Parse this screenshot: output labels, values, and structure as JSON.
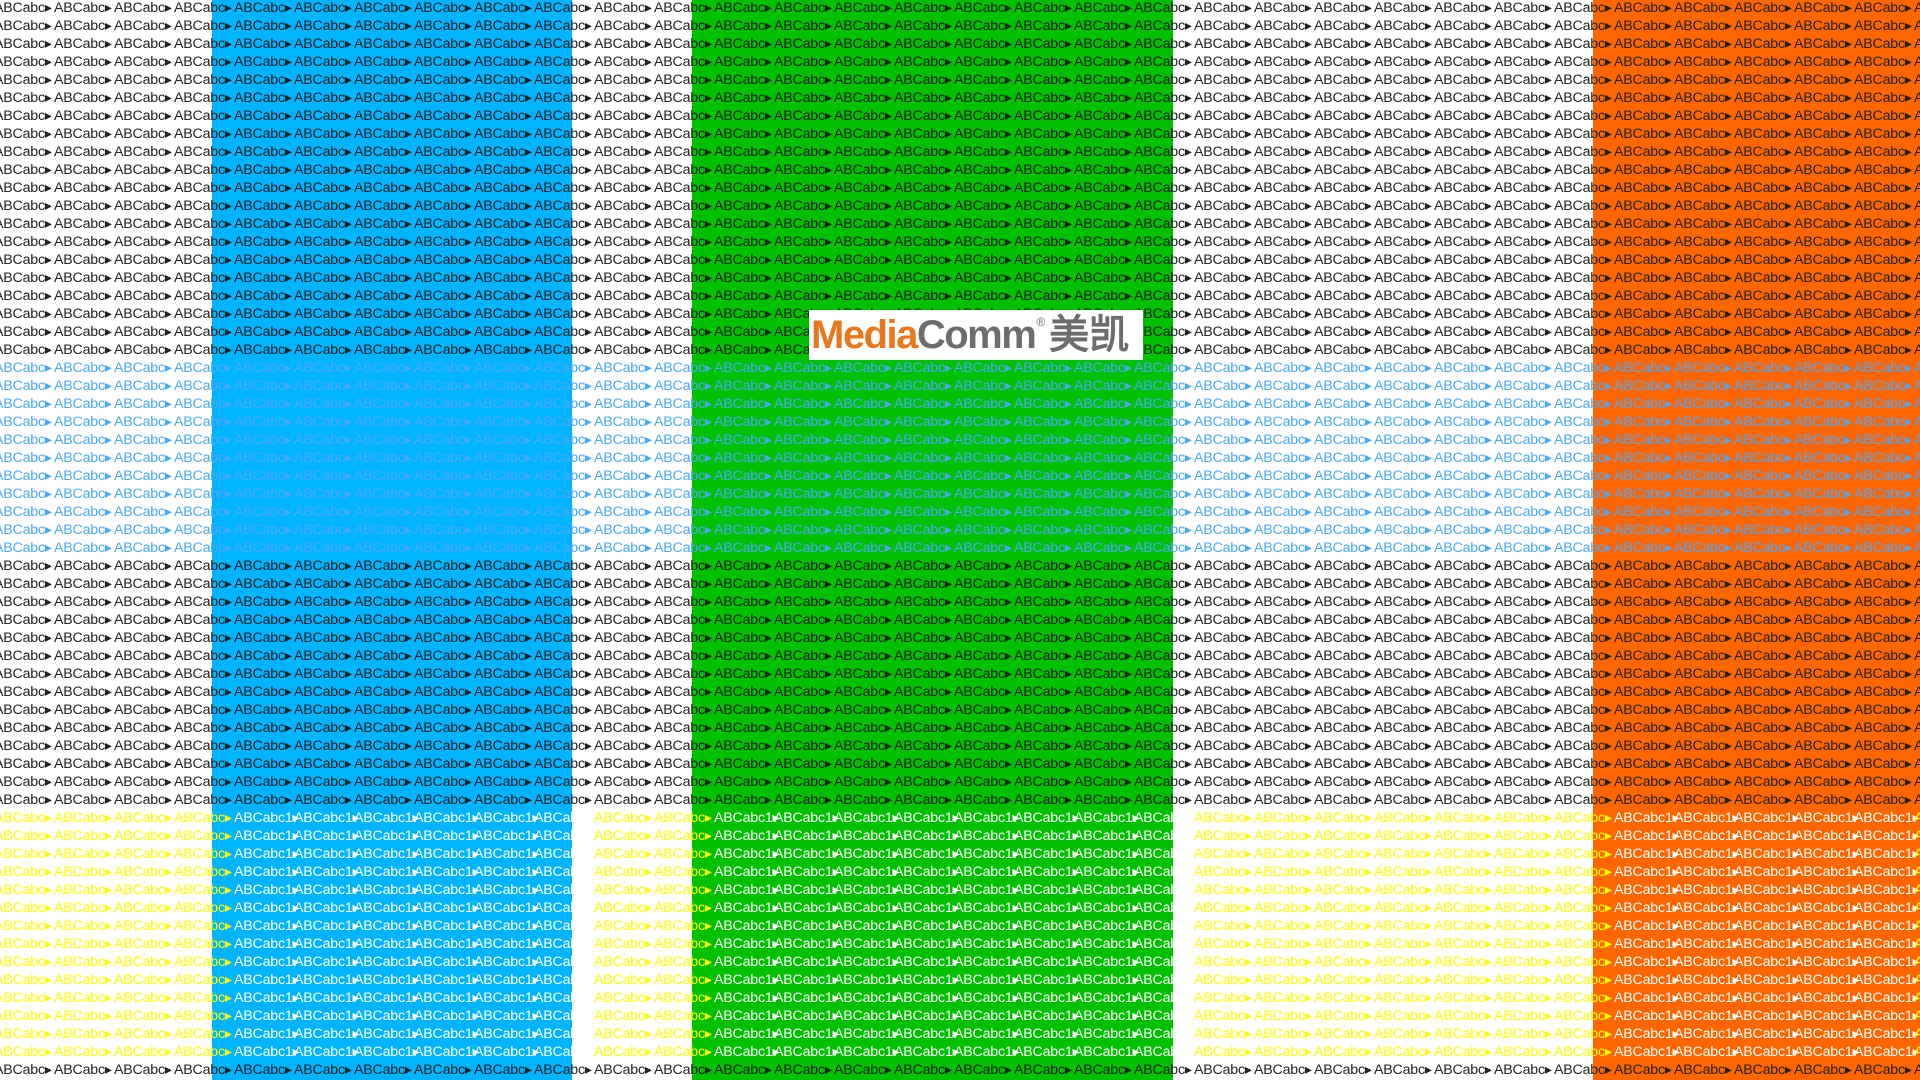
{
  "pattern": {
    "token": "ABCabc",
    "token_alt": "ABCabc1"
  },
  "colors": {
    "white_bg": "#ffffff",
    "blue_bg": "#00b4ff",
    "green_bg": "#00c000",
    "orange_bg": "#ff6600",
    "text_dark": "#222222",
    "text_lightblue": "#4aa8ff",
    "text_yellow": "#ffff00",
    "text_white": "#ffffff",
    "brand_orange": "#e8771e",
    "brand_gray": "#6d6d6d"
  },
  "logo": {
    "media": "Media",
    "comm": "Comm",
    "registered": "®",
    "chinese": "美凯"
  }
}
